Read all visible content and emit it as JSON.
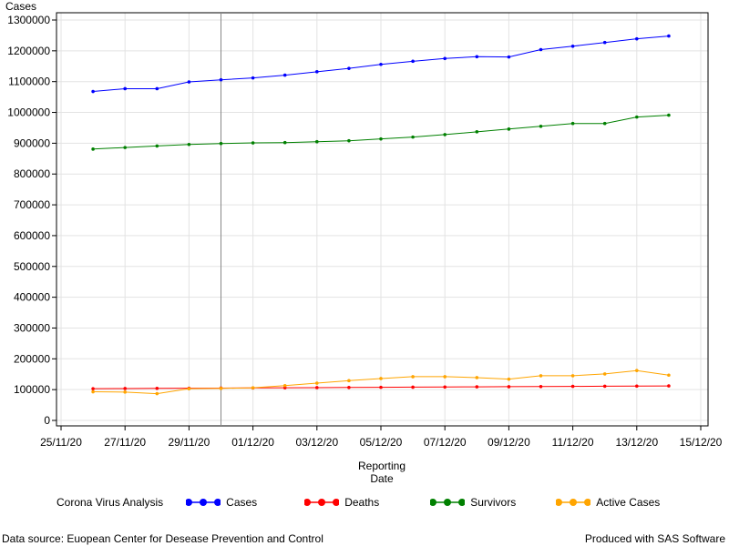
{
  "chart_data": {
    "type": "line",
    "ylabel": "Cases",
    "xlabel_line1": "Reporting",
    "xlabel_line2": "Date",
    "x_ticks": [
      "25/11/20",
      "27/11/20",
      "29/11/20",
      "01/12/20",
      "03/12/20",
      "05/12/20",
      "07/12/20",
      "09/12/20",
      "11/12/20",
      "13/12/20",
      "15/12/20"
    ],
    "x_range": [
      "25/11/20",
      "15/12/20"
    ],
    "y_ticks": [
      0,
      100000,
      200000,
      300000,
      400000,
      500000,
      600000,
      700000,
      800000,
      900000,
      1000000,
      1100000,
      1200000,
      1300000
    ],
    "ylim": [
      -20000,
      1310000
    ],
    "grid": true,
    "reference_line_x": "30/11/20",
    "x": [
      "26/11/20",
      "27/11/20",
      "28/11/20",
      "29/11/20",
      "30/11/20",
      "01/12/20",
      "02/12/20",
      "03/12/20",
      "04/12/20",
      "05/12/20",
      "06/12/20",
      "07/12/20",
      "08/12/20",
      "09/12/20",
      "10/12/20",
      "11/12/20",
      "12/12/20",
      "13/12/20",
      "14/12/20"
    ],
    "series": [
      {
        "name": "Cases",
        "color": "#0000ff",
        "values": [
          1068000,
          1077000,
          1077000,
          1099000,
          1106000,
          1112000,
          1121000,
          1132000,
          1143000,
          1156000,
          1166000,
          1175000,
          1181000,
          1180000,
          1204000,
          1215000,
          1227000,
          1239000,
          1248000
        ]
      },
      {
        "name": "Deaths",
        "color": "#ff0000",
        "values": [
          103000,
          103500,
          104000,
          104500,
          105000,
          105500,
          106000,
          106500,
          107000,
          107500,
          108000,
          108500,
          109000,
          109500,
          110000,
          110500,
          111000,
          111500,
          112000
        ]
      },
      {
        "name": "Survivors",
        "color": "#008000",
        "values": [
          881000,
          886000,
          891000,
          896000,
          899000,
          901000,
          902000,
          905000,
          908000,
          914000,
          920000,
          928000,
          937000,
          946000,
          955000,
          964000,
          964000,
          985000,
          991000
        ]
      },
      {
        "name": "Active Cases",
        "color": "#ffa500",
        "values": [
          93000,
          92000,
          87000,
          103000,
          104000,
          106000,
          113000,
          121000,
          129000,
          136000,
          142000,
          142000,
          139000,
          134000,
          145000,
          145000,
          151000,
          162000,
          147000
        ]
      }
    ]
  },
  "legend": {
    "title": "Corona Virus Analysis",
    "items": [
      "Cases",
      "Deaths",
      "Survivors",
      "Active Cases"
    ]
  },
  "footer": {
    "left": "Data source: Euopean Center for Desease Prevention and Control",
    "right": "Produced with SAS Software"
  }
}
